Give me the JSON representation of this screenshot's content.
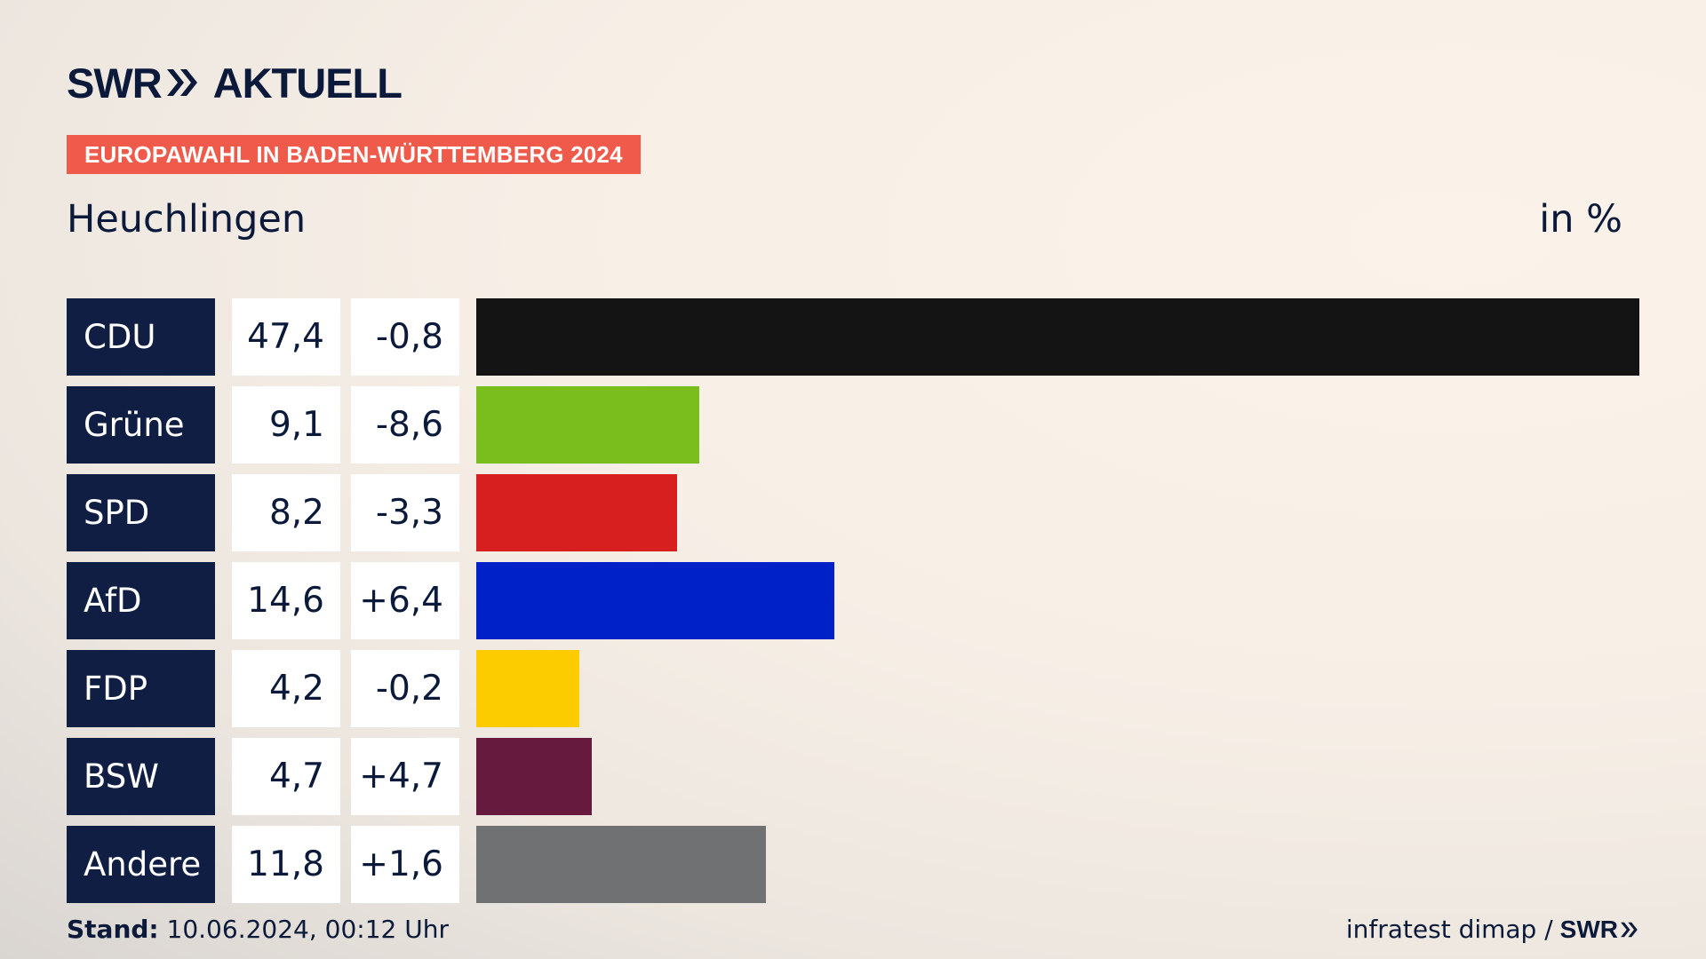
{
  "header": {
    "logo_text": "SWR",
    "logo_suffix": "AKTUELL",
    "tag": "EUROPAWAHL IN BADEN-WÜRTTEMBERG 2024",
    "place": "Heuchlingen",
    "unit": "in %"
  },
  "colors": {
    "navy": "#0f1e42",
    "tag_bg": "#f05a4a"
  },
  "chart_data": {
    "type": "bar",
    "categories": [
      "CDU",
      "Grüne",
      "SPD",
      "AfD",
      "FDP",
      "BSW",
      "Andere"
    ],
    "values": [
      47.4,
      9.1,
      8.2,
      14.6,
      4.2,
      4.7,
      11.8
    ],
    "value_labels": [
      "47,4",
      "9,1",
      "8,2",
      "14,6",
      "4,2",
      "4,7",
      "11,8"
    ],
    "change_labels": [
      "-0,8",
      "-8,6",
      "-3,3",
      "+6,4",
      "-0,2",
      "+4,7",
      "+1,6"
    ],
    "changes": [
      -0.8,
      -8.6,
      -3.3,
      6.4,
      -0.2,
      4.7,
      1.6
    ],
    "colors": [
      "#141414",
      "#7abe1e",
      "#d71f1f",
      "#0021c8",
      "#fdcc00",
      "#661a3e",
      "#707173"
    ],
    "unit": "in %"
  },
  "footer": {
    "stand_label": "Stand:",
    "stand_value": "10.06.2024, 00:12 Uhr",
    "source": "infratest dimap /",
    "source_logo": "SWR"
  }
}
